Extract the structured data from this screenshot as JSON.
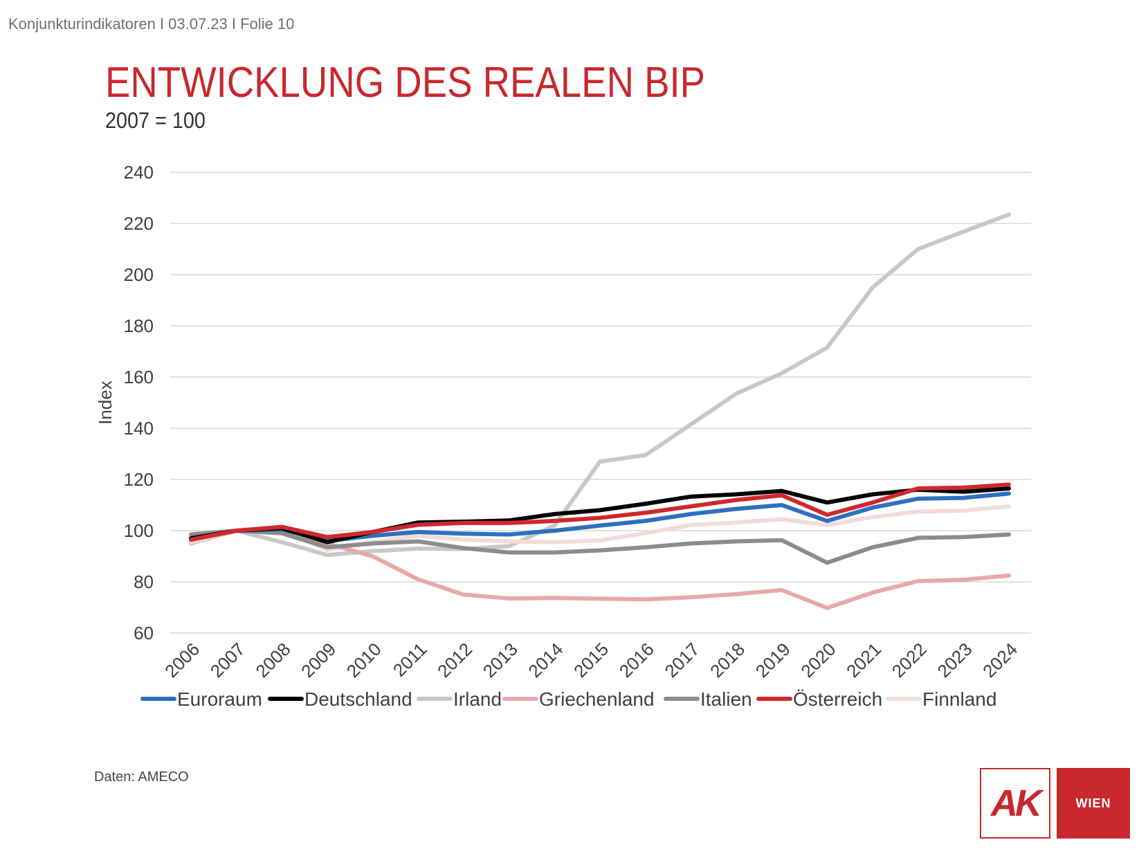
{
  "header": {
    "breadcrumb": "Konjunkturindikatoren I 03.07.23 I Folie 10"
  },
  "slide": {
    "title": "ENTWICKLUNG DES REALEN BIP",
    "subtitle": "2007 = 100",
    "source": "Daten: AMECO"
  },
  "logo": {
    "ak": "AK",
    "wien": "WIEN"
  },
  "colors": {
    "title": "#c8282d",
    "Euroraum": "#2f6fbf",
    "Deutschland": "#000000",
    "Irland": "#c8c8c8",
    "Griechenland": "#e8a8aa",
    "Italien": "#8c8c8c",
    "Österreich": "#d0282d",
    "Finnland": "#f2dadb"
  },
  "chart_data": {
    "type": "line",
    "ylabel": "Index",
    "ylim": [
      60,
      240
    ],
    "yticks": [
      60,
      80,
      100,
      120,
      140,
      160,
      180,
      200,
      220,
      240
    ],
    "grid": true,
    "legend": "bottom",
    "x": [
      "2006",
      "2007",
      "2008",
      "2009",
      "2010",
      "2011",
      "2012",
      "2013",
      "2014",
      "2015",
      "2016",
      "2017",
      "2018",
      "2019",
      "2020",
      "2021",
      "2022",
      "2023",
      "2024"
    ],
    "series": [
      {
        "name": "Euroraum",
        "color": "#2f6fbf",
        "values": [
          97,
          100,
          100.5,
          96,
          98,
          99.5,
          98.8,
          98.5,
          100,
          102,
          103.8,
          106.5,
          108.5,
          110,
          103.8,
          109,
          112.5,
          112.8,
          114.5
        ]
      },
      {
        "name": "Deutschland",
        "color": "#000000",
        "values": [
          97,
          100,
          101,
          95.5,
          99.5,
          103.2,
          103.5,
          104,
          106.5,
          108,
          110.5,
          113.3,
          114.2,
          115.5,
          111,
          114.2,
          116,
          115.2,
          116.5
        ]
      },
      {
        "name": "Irland",
        "color": "#c8c8c8",
        "values": [
          95,
          100,
          95.5,
          90.5,
          92,
          93,
          92.8,
          94,
          102,
          127,
          129.5,
          141.5,
          153.5,
          161.5,
          171.5,
          195,
          210,
          216.8,
          223.5
        ]
      },
      {
        "name": "Griechenland",
        "color": "#e8a8aa",
        "values": [
          96.5,
          100,
          99.8,
          95,
          90,
          81,
          75,
          73.5,
          73.7,
          73.4,
          73.2,
          74,
          75.2,
          76.8,
          69.8,
          75.8,
          80.3,
          80.8,
          82.5
        ]
      },
      {
        "name": "Italien",
        "color": "#8c8c8c",
        "values": [
          98.5,
          100,
          99,
          93.5,
          95,
          95.8,
          93.2,
          91.5,
          91.5,
          92.3,
          93.5,
          95,
          95.8,
          96.3,
          87.5,
          93.5,
          97.2,
          97.5,
          98.5
        ]
      },
      {
        "name": "Österreich",
        "color": "#d0282d",
        "values": [
          96.5,
          100,
          101.5,
          97.5,
          99.5,
          102.3,
          103,
          103,
          103.8,
          105,
          107,
          109.5,
          112,
          113.8,
          106.2,
          111,
          116.5,
          116.8,
          118
        ]
      },
      {
        "name": "Finnland",
        "color": "#f2dadb",
        "values": [
          95.5,
          100,
          100.5,
          92.5,
          95.5,
          98,
          96.5,
          95.8,
          95.5,
          96.2,
          99,
          102.2,
          103.2,
          104.5,
          102.2,
          105.3,
          107.5,
          107.8,
          109.5
        ]
      }
    ]
  }
}
